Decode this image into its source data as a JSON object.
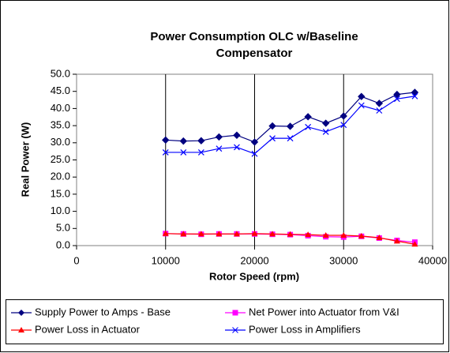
{
  "chart_data": {
    "type": "line",
    "title": [
      "Power  Consumption OLC w/Baseline",
      "Compensator"
    ],
    "x_label": "Rotor Speed (rpm)",
    "y_label": "Real Power (W)",
    "x": [
      10000,
      12000,
      14000,
      16000,
      18000,
      20000,
      22000,
      24000,
      26000,
      28000,
      30000,
      32000,
      34000,
      36000,
      38000
    ],
    "series": [
      {
        "name": "Supply Power to Amps - Base",
        "color": "#000080",
        "marker": "diamond",
        "values": [
          30.8,
          30.5,
          30.6,
          31.7,
          32.2,
          30.2,
          34.9,
          34.8,
          37.6,
          35.7,
          37.8,
          43.5,
          41.5,
          44.1,
          44.7
        ]
      },
      {
        "name": "Net Power into Actuator from V&I",
        "color": "#ff00ff",
        "marker": "square",
        "values": [
          3.5,
          3.4,
          3.3,
          3.4,
          3.4,
          3.4,
          3.3,
          3.2,
          2.9,
          2.6,
          2.5,
          2.7,
          2.2,
          1.5,
          1.0
        ]
      },
      {
        "name": "Power Loss in Actuator",
        "color": "#ff0000",
        "marker": "triangle",
        "values": [
          3.5,
          3.4,
          3.4,
          3.4,
          3.4,
          3.5,
          3.4,
          3.3,
          3.2,
          3.0,
          3.0,
          2.8,
          2.3,
          1.3,
          0.4
        ]
      },
      {
        "name": "Power Loss in Amplifiers",
        "color": "#0000ff",
        "marker": "x",
        "values": [
          27.2,
          27.2,
          27.2,
          28.3,
          28.7,
          26.8,
          31.3,
          31.3,
          34.6,
          33.2,
          35.2,
          40.9,
          39.4,
          42.8,
          43.6
        ]
      }
    ],
    "xlim": [
      0,
      40000
    ],
    "xticks": [
      0,
      10000,
      20000,
      30000,
      40000
    ],
    "ylim": [
      0,
      50
    ],
    "yticks": [
      {
        "value": 0,
        "label": "0.0"
      },
      {
        "value": 5,
        "label": "5.0"
      },
      {
        "value": 10,
        "label": "10.0"
      },
      {
        "value": 15,
        "label": "15.0"
      },
      {
        "value": 20,
        "label": "20.0"
      },
      {
        "value": 25,
        "label": "25.0"
      },
      {
        "value": 30,
        "label": "30.0"
      },
      {
        "value": 35,
        "label": "35.0"
      },
      {
        "value": 40,
        "label": "40.0"
      },
      {
        "value": 45,
        "label": "45.0"
      },
      {
        "value": 50,
        "label": "50.0"
      }
    ],
    "x_grid": true,
    "legend": "bottom"
  }
}
